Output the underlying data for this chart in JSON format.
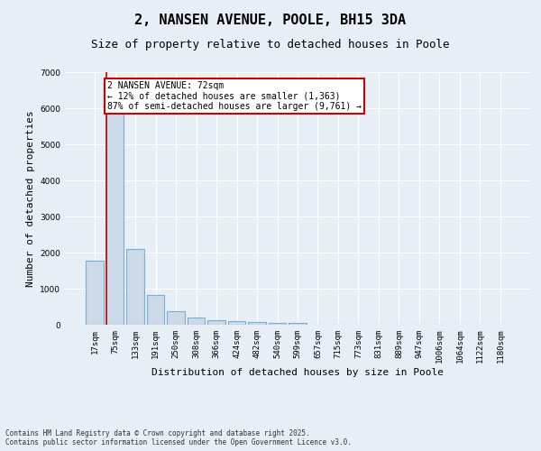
{
  "title": "2, NANSEN AVENUE, POOLE, BH15 3DA",
  "subtitle": "Size of property relative to detached houses in Poole",
  "xlabel": "Distribution of detached houses by size in Poole",
  "ylabel": "Number of detached properties",
  "bar_color": "#ccd9e8",
  "bar_edge_color": "#7aafd4",
  "background_color": "#e8eef5",
  "categories": [
    "17sqm",
    "75sqm",
    "133sqm",
    "191sqm",
    "250sqm",
    "308sqm",
    "366sqm",
    "424sqm",
    "482sqm",
    "540sqm",
    "599sqm",
    "657sqm",
    "715sqm",
    "773sqm",
    "831sqm",
    "889sqm",
    "947sqm",
    "1006sqm",
    "1064sqm",
    "1122sqm",
    "1180sqm"
  ],
  "values": [
    1780,
    5850,
    2090,
    820,
    370,
    210,
    120,
    90,
    75,
    60,
    50,
    0,
    0,
    0,
    0,
    0,
    0,
    0,
    0,
    0,
    0
  ],
  "ylim": [
    0,
    7000
  ],
  "yticks": [
    0,
    1000,
    2000,
    3000,
    4000,
    5000,
    6000,
    7000
  ],
  "annotation_box_text": "2 NANSEN AVENUE: 72sqm\n← 12% of detached houses are smaller (1,363)\n87% of semi-detached houses are larger (9,761) →",
  "annotation_box_color": "#ffffff",
  "annotation_box_edge_color": "#cc0000",
  "footer_line1": "Contains HM Land Registry data © Crown copyright and database right 2025.",
  "footer_line2": "Contains public sector information licensed under the Open Government Licence v3.0.",
  "grid_color": "#ffffff",
  "title_fontsize": 11,
  "subtitle_fontsize": 9,
  "tick_fontsize": 6.5,
  "label_fontsize": 8,
  "annotation_fontsize": 7,
  "footer_fontsize": 5.5
}
